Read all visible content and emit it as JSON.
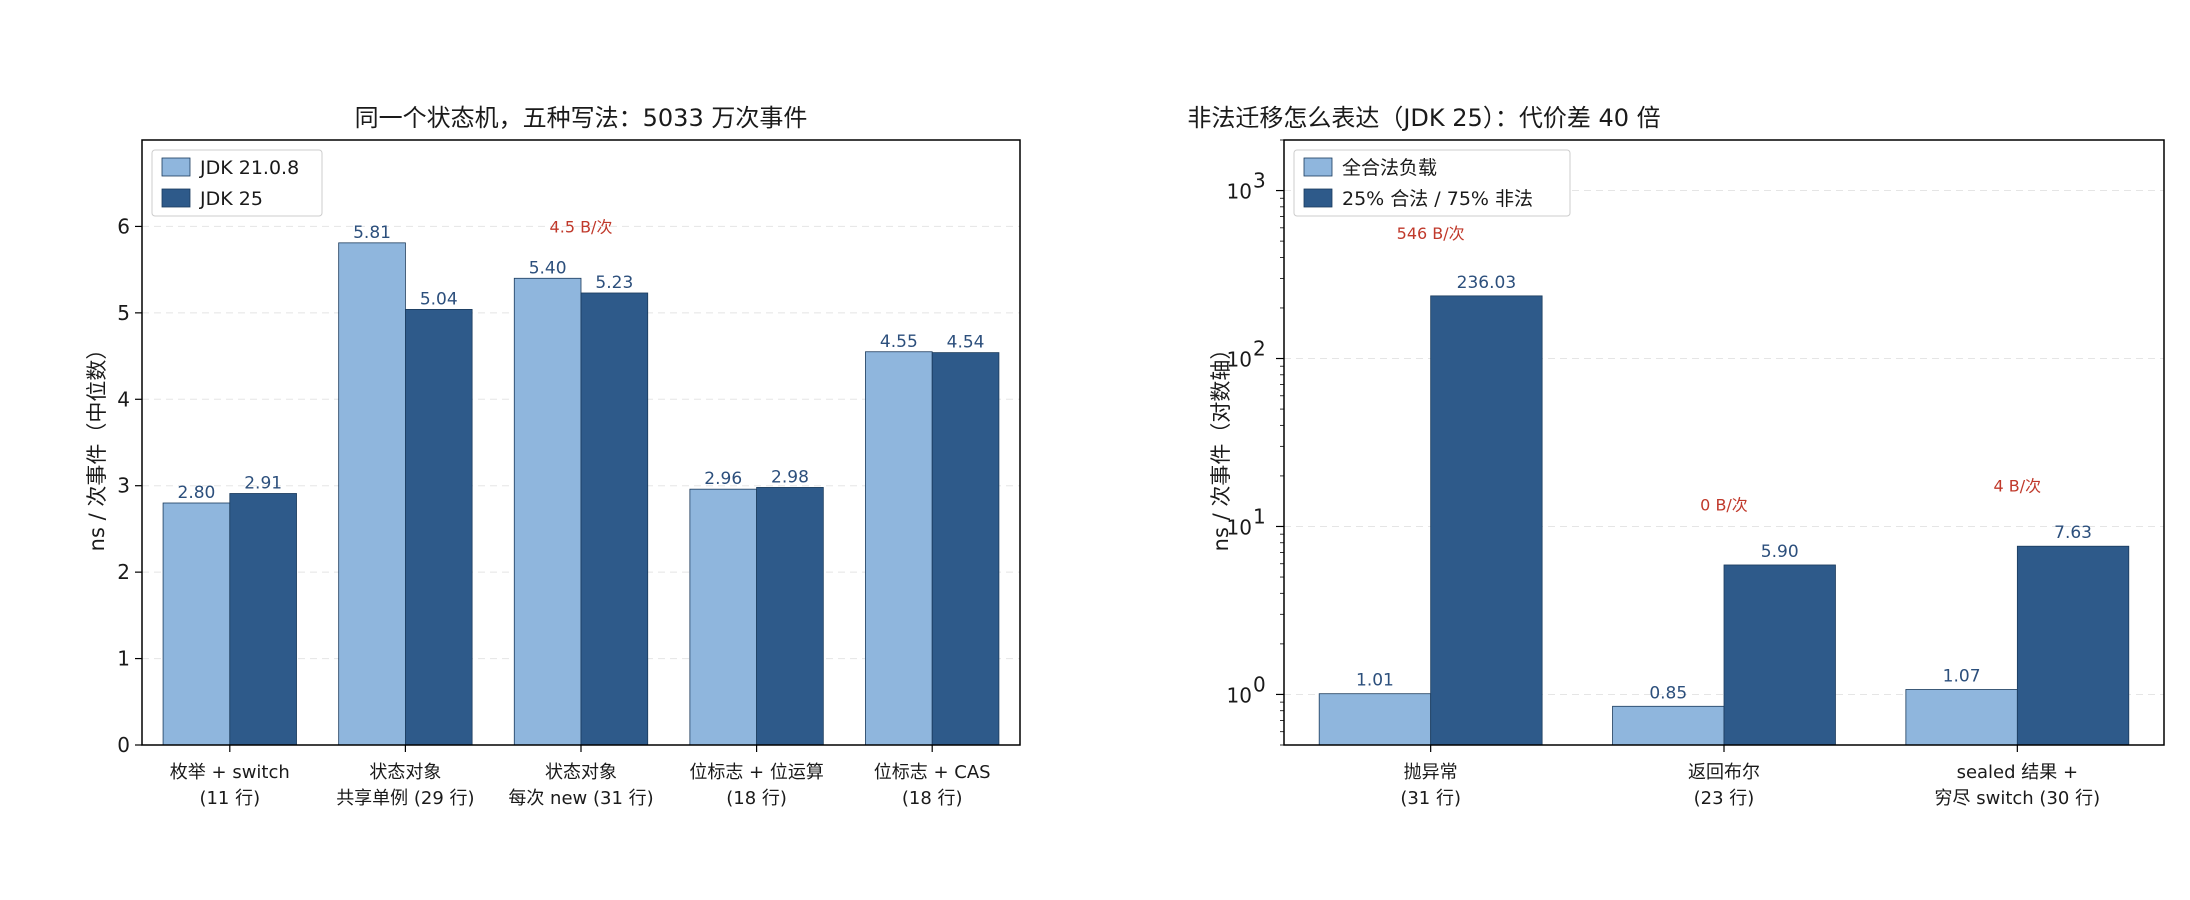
{
  "colors": {
    "light": "#8fb6dd",
    "dark": "#2e5a8a",
    "annotation": "#c0392b",
    "value_text": "#2c4f7c"
  },
  "chart_data": [
    {
      "type": "bar",
      "title": "同一个状态机，五种写法：5033 万次事件",
      "ylabel": "ns / 次事件（中位数）",
      "ylim": [
        0,
        7
      ],
      "yticks": [
        "0",
        "1",
        "2",
        "3",
        "4",
        "5",
        "6"
      ],
      "categories": [
        [
          "枚举 + switch",
          "(11 行)"
        ],
        [
          "状态对象",
          "共享单例 (29 行)"
        ],
        [
          "状态对象",
          "每次 new (31 行)"
        ],
        [
          "位标志 + 位运算",
          "(18 行)"
        ],
        [
          "位标志 + CAS",
          "(18 行)"
        ]
      ],
      "series": [
        {
          "name": "JDK 21.0.8",
          "values": [
            2.8,
            5.81,
            5.4,
            2.96,
            4.55
          ],
          "labels": [
            "2.80",
            "5.81",
            "5.40",
            "2.96",
            "4.55"
          ]
        },
        {
          "name": "JDK 25",
          "values": [
            2.91,
            5.04,
            5.23,
            2.98,
            4.54
          ],
          "labels": [
            "2.91",
            "5.04",
            "5.23",
            "2.98",
            "4.54"
          ]
        }
      ],
      "annotations": [
        {
          "category_index": 2,
          "text": "4.5 B/次",
          "y": 6.0
        }
      ],
      "legend": "top-left",
      "grid": "y"
    },
    {
      "type": "bar",
      "title": "非法迁移怎么表达（JDK 25）：代价差 40 倍",
      "ylabel": "ns / 次事件（对数轴）",
      "yscale": "log",
      "ylim": [
        0.5,
        2000
      ],
      "yticks": [
        1,
        10,
        100,
        1000
      ],
      "categories": [
        [
          "抛异常",
          "(31 行)"
        ],
        [
          "返回布尔",
          "(23 行)"
        ],
        [
          "sealed 结果 +",
          "穷尽 switch (30 行)"
        ]
      ],
      "series": [
        {
          "name": "全合法负载",
          "values": [
            1.01,
            0.85,
            1.07
          ],
          "labels": [
            "1.01",
            "0.85",
            "1.07"
          ]
        },
        {
          "name": "25% 合法 / 75% 非法",
          "values": [
            236.03,
            5.9,
            7.63
          ],
          "labels": [
            "236.03",
            "5.90",
            "7.63"
          ]
        }
      ],
      "annotations": [
        {
          "category_index": 0,
          "text": "546 B/次",
          "y": 560
        },
        {
          "category_index": 1,
          "text": "0 B/次",
          "y": 13.5
        },
        {
          "category_index": 2,
          "text": "4 B/次",
          "y": 17.5
        }
      ],
      "legend": "top-left",
      "grid": "y"
    }
  ]
}
